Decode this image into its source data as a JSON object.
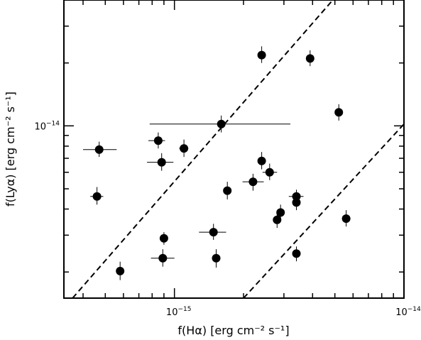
{
  "chart_data": {
    "type": "scatter",
    "title": "",
    "xlabel": "f(Hα) [erg cm⁻² s⁻¹]",
    "ylabel": "f(Lyα) [erg cm⁻² s⁻¹]",
    "xscale": "log",
    "yscale": "log",
    "xlim": [
      3.3e-16,
      1e-14
    ],
    "ylim": [
      1.5e-15,
      4e-14
    ],
    "x_tick_labels": [
      {
        "value": 1e-15,
        "base": "10",
        "exp": "−15"
      },
      {
        "value": 1e-14,
        "base": "10",
        "exp": "−14"
      }
    ],
    "y_tick_labels": [
      {
        "value": 1e-14,
        "base": "10",
        "exp": "−14"
      }
    ],
    "grid": false,
    "points": [
      {
        "x": 4.7e-16,
        "y": 7.7e-15,
        "xerr": [
          4e-16,
          5.6e-16
        ],
        "yerr": [
          7.1e-15,
          8.4e-15
        ]
      },
      {
        "x": 4.6e-16,
        "y": 4.6e-15,
        "xerr": [
          4.3e-16,
          4.9e-16
        ],
        "yerr": [
          4.2e-15,
          5.1e-15
        ]
      },
      {
        "x": 5.8e-16,
        "y": 2.02e-15,
        "xerr": [
          5.6e-16,
          6e-16
        ],
        "yerr": [
          1.83e-15,
          2.24e-15
        ]
      },
      {
        "x": 8.5e-16,
        "y": 8.5e-15,
        "xerr": [
          7.7e-16,
          9.1e-16
        ],
        "yerr": [
          7.8e-15,
          9.3e-15
        ]
      },
      {
        "x": 8.8e-16,
        "y": 6.7e-15,
        "xerr": [
          7.6e-16,
          9.9e-16
        ],
        "yerr": [
          6.1e-15,
          7.4e-15
        ]
      },
      {
        "x": 1.1e-15,
        "y": 7.8e-15,
        "xerr": [
          1.05e-15,
          1.15e-15
        ],
        "yerr": [
          7.1e-15,
          8.6e-15
        ]
      },
      {
        "x": 1.6e-15,
        "y": 1.02e-14,
        "xerr": [
          7.8e-16,
          3.2e-15
        ],
        "yerr": [
          9.3e-15,
          1.12e-14
        ]
      },
      {
        "x": 9e-16,
        "y": 2.9e-15,
        "xerr": [
          8.7e-16,
          9.3e-16
        ],
        "yerr": [
          2.7e-15,
          3.1e-15
        ]
      },
      {
        "x": 8.9e-16,
        "y": 2.33e-15,
        "xerr": [
          7.9e-16,
          1e-15
        ],
        "yerr": [
          2.12e-15,
          2.57e-15
        ]
      },
      {
        "x": 1.48e-15,
        "y": 3.1e-15,
        "xerr": [
          1.28e-15,
          1.68e-15
        ],
        "yerr": [
          2.85e-15,
          3.4e-15
        ]
      },
      {
        "x": 1.52e-15,
        "y": 2.33e-15,
        "xerr": [
          1.49e-15,
          1.55e-15
        ],
        "yerr": [
          2.1e-15,
          2.57e-15
        ]
      },
      {
        "x": 1.7e-15,
        "y": 4.9e-15,
        "xerr": [
          1.66e-15,
          1.74e-15
        ],
        "yerr": [
          4.45e-15,
          5.4e-15
        ]
      },
      {
        "x": 2.2e-15,
        "y": 5.4e-15,
        "xerr": [
          1.98e-15,
          2.45e-15
        ],
        "yerr": [
          4.9e-15,
          5.9e-15
        ]
      },
      {
        "x": 2.4e-15,
        "y": 6.8e-15,
        "xerr": [
          2.33e-15,
          2.47e-15
        ],
        "yerr": [
          6.2e-15,
          7.5e-15
        ]
      },
      {
        "x": 2.6e-15,
        "y": 6e-15,
        "xerr": [
          2.42e-15,
          2.8e-15
        ],
        "yerr": [
          5.5e-15,
          6.6e-15
        ]
      },
      {
        "x": 2.4e-15,
        "y": 2.18e-14,
        "xerr": [
          2.35e-15,
          2.45e-15
        ],
        "yerr": [
          2e-14,
          2.4e-14
        ]
      },
      {
        "x": 3.9e-15,
        "y": 2.1e-14,
        "xerr": [
          3.85e-15,
          3.95e-15
        ],
        "yerr": [
          1.93e-14,
          2.3e-14
        ]
      },
      {
        "x": 5.2e-15,
        "y": 1.16e-14,
        "xerr": [
          5.05e-15,
          5.35e-15
        ],
        "yerr": [
          1.06e-14,
          1.27e-14
        ]
      },
      {
        "x": 3.4e-15,
        "y": 4.6e-15,
        "xerr": [
          3.15e-15,
          3.65e-15
        ],
        "yerr": [
          4.25e-15,
          4.95e-15
        ]
      },
      {
        "x": 3.4e-15,
        "y": 4.3e-15,
        "xerr": [
          3.35e-15,
          3.45e-15
        ],
        "yerr": [
          3.95e-15,
          4.7e-15
        ]
      },
      {
        "x": 2.9e-15,
        "y": 3.85e-15,
        "xerr": [
          2.86e-15,
          2.94e-15
        ],
        "yerr": [
          3.55e-15,
          4.2e-15
        ]
      },
      {
        "x": 2.8e-15,
        "y": 3.55e-15,
        "xerr": [
          2.75e-15,
          2.85e-15
        ],
        "yerr": [
          3.25e-15,
          3.9e-15
        ]
      },
      {
        "x": 3.4e-15,
        "y": 2.45e-15,
        "xerr": [
          3.36e-15,
          3.44e-15
        ],
        "yerr": [
          2.25e-15,
          2.65e-15
        ]
      },
      {
        "x": 5.6e-15,
        "y": 3.6e-15,
        "xerr": [
          5.45e-15,
          5.75e-15
        ],
        "yerr": [
          3.3e-15,
          3.95e-15
        ]
      }
    ],
    "dashed_lines": [
      {
        "points": [
          [
            3.6e-16,
            1.5e-15
          ],
          [
            4.9e-15,
            4e-14
          ]
        ]
      },
      {
        "points": [
          [
            2e-15,
            1.5e-15
          ],
          [
            1e-14,
            1.02e-14
          ]
        ]
      }
    ],
    "colors": {
      "axes": "#000000",
      "markers": "#000000"
    }
  }
}
